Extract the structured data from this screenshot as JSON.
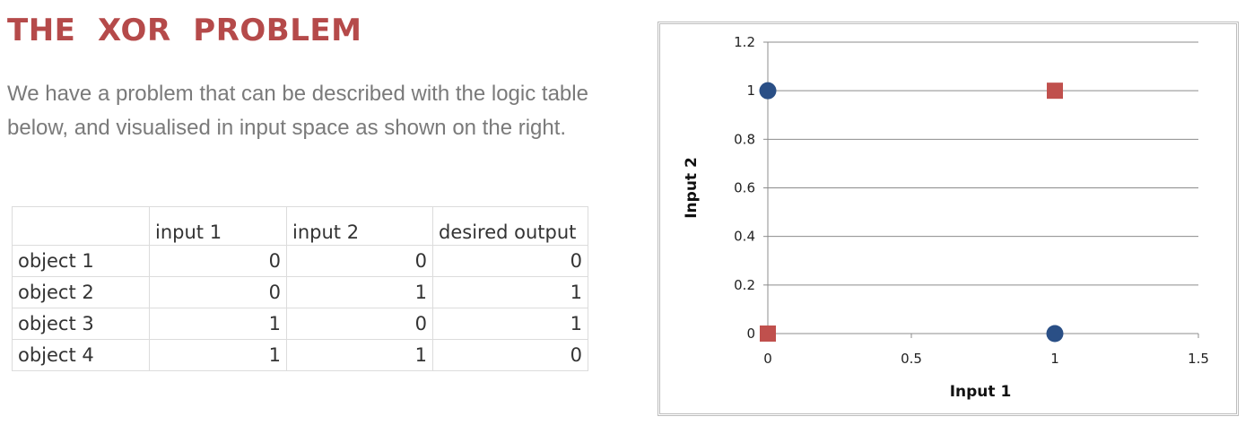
{
  "title": "THE  XOR  PROBLEM",
  "intro": "We have a problem that can be described with the logic table below, and visualised in input space as shown on the right.",
  "table": {
    "headers": [
      "",
      "input 1",
      "input 2",
      "desired output"
    ],
    "rows": [
      [
        "object 1",
        "0",
        "0",
        "0"
      ],
      [
        "object 2",
        "0",
        "1",
        "1"
      ],
      [
        "object 3",
        "1",
        "0",
        "1"
      ],
      [
        "object 4",
        "1",
        "1",
        "0"
      ]
    ]
  },
  "chart_data": {
    "type": "scatter",
    "title": "",
    "xlabel": "Input 1",
    "ylabel": "Input 2",
    "xlim": [
      0,
      1.5
    ],
    "ylim": [
      0,
      1.2
    ],
    "xticks": [
      "0",
      "0.5",
      "1",
      "1.5"
    ],
    "yticks": [
      "0",
      "0.2",
      "0.4",
      "0.6",
      "0.8",
      "1",
      "1.2"
    ],
    "grid": "horizontal",
    "legend": "none",
    "series": [
      {
        "marker": "circle",
        "color": "#2a4f86",
        "points": [
          [
            0,
            1
          ],
          [
            1,
            0
          ]
        ]
      },
      {
        "marker": "square",
        "color": "#c0504d",
        "points": [
          [
            1,
            1
          ],
          [
            0,
            0
          ]
        ]
      }
    ]
  }
}
